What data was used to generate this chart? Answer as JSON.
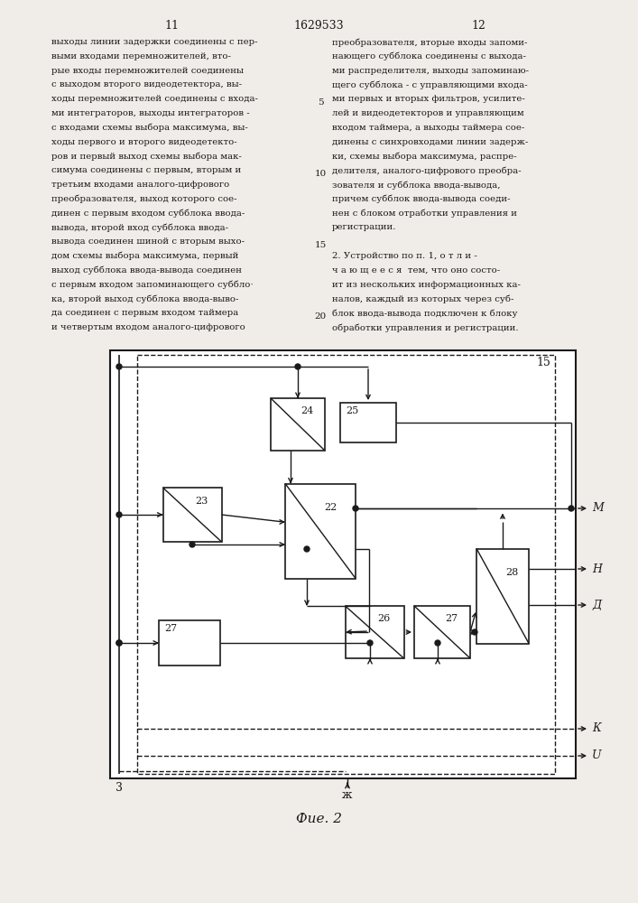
{
  "page_num_left": "11",
  "page_num_center": "1629533",
  "page_num_right": "12",
  "bg_color": "#f0ede8",
  "line_color": "#1a1a1a",
  "caption": "Фие. 2"
}
